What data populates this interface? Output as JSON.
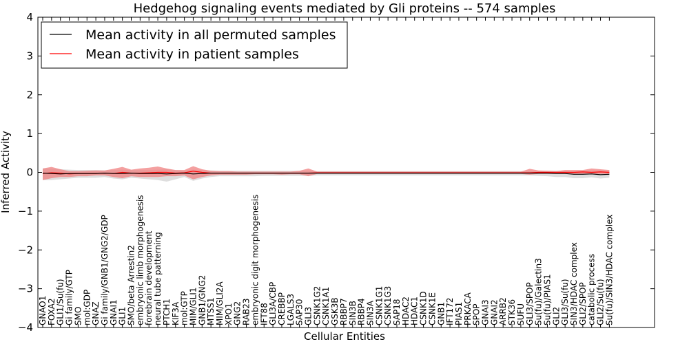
{
  "chart_data": {
    "type": "line",
    "title": "Hedgehog signaling events mediated by Gli proteins -- 574 samples",
    "xlabel": "Cellular Entities",
    "ylabel": "Inferred Activity",
    "ylim": [
      -4,
      4
    ],
    "yticks": [
      -4,
      -3,
      -2,
      -1,
      0,
      1,
      2,
      3,
      4
    ],
    "grid": false,
    "legend_position": "top-left",
    "categories": [
      "GNAO1",
      "FOXA2",
      "GLI1/Su(fu)",
      "Gi family/GTP",
      "SMO",
      "mol:GDP",
      "GNAZ",
      "Gi family/GNB1/GNG2/GDP",
      "GNAI1",
      "GLI1",
      "SMO/beta Arrestin2",
      "embryonic limb morphogenesis",
      "forebrain development",
      "neural tube patterning",
      "PTCH1",
      "KIF3A",
      "mol:GTP",
      "MIM/GLI1",
      "GNB1/GNG2",
      "MTSS1",
      "MIM/GLI2A",
      "XPO1",
      "GNG2",
      "RAB23",
      "embryonic digit morphogenesis",
      "IFT88",
      "GLI3A/CBP",
      "CREBBP",
      "LGALS3",
      "SAP30",
      "GLI3",
      "CSNK1G2",
      "CSNK1A1",
      "GSK3B",
      "RBBP7",
      "SIN3B",
      "RBBP4",
      "SIN3A",
      "CSNK1G1",
      "CSNK1G3",
      "SAP18",
      "HDAC2",
      "HDAC1",
      "CSNK1D",
      "CSNK1E",
      "GNB1",
      "IFT172",
      "PIAS1",
      "PRKACA",
      "SPOP",
      "GNAI3",
      "GNAI2",
      "ARRB2",
      "STK36",
      "SUFU",
      "GLI3/SPOP",
      "Su(fu)/Galectin3",
      "Su(fu)/PIAS1",
      "GLI2",
      "GLI3/Su(fu)",
      "SIN3/HDAC complex",
      "GLI2/SPOP",
      "catabolic process",
      "GLI2/Su(fu)",
      "Su(fu)/SIN3/HDAC complex"
    ],
    "series": [
      {
        "name": "Mean activity in all permuted samples",
        "color": "#000000",
        "band_color": "#d8d8d8",
        "values": [
          -0.02,
          -0.03,
          -0.04,
          -0.03,
          -0.03,
          -0.03,
          -0.03,
          -0.02,
          -0.03,
          -0.03,
          -0.02,
          -0.03,
          -0.03,
          -0.03,
          -0.04,
          -0.03,
          -0.02,
          -0.04,
          -0.03,
          -0.02,
          -0.02,
          -0.02,
          -0.02,
          -0.02,
          -0.02,
          -0.02,
          -0.02,
          -0.02,
          -0.02,
          -0.02,
          -0.02,
          -0.02,
          -0.02,
          -0.02,
          -0.02,
          -0.02,
          -0.02,
          -0.02,
          -0.02,
          -0.02,
          -0.02,
          -0.02,
          -0.02,
          -0.02,
          -0.02,
          -0.02,
          -0.02,
          -0.02,
          -0.02,
          -0.02,
          -0.02,
          -0.02,
          -0.02,
          -0.02,
          -0.02,
          -0.02,
          -0.02,
          -0.02,
          -0.03,
          -0.03,
          -0.05,
          -0.05,
          -0.04,
          -0.06,
          -0.05
        ],
        "band_low": [
          -0.2,
          -0.2,
          -0.18,
          -0.16,
          -0.14,
          -0.14,
          -0.14,
          -0.12,
          -0.16,
          -0.18,
          -0.14,
          -0.16,
          -0.18,
          -0.2,
          -0.24,
          -0.18,
          -0.12,
          -0.22,
          -0.16,
          -0.12,
          -0.1,
          -0.1,
          -0.1,
          -0.1,
          -0.1,
          -0.09,
          -0.09,
          -0.09,
          -0.09,
          -0.09,
          -0.09,
          -0.08,
          -0.08,
          -0.08,
          -0.08,
          -0.08,
          -0.08,
          -0.08,
          -0.08,
          -0.08,
          -0.08,
          -0.08,
          -0.08,
          -0.08,
          -0.08,
          -0.08,
          -0.08,
          -0.08,
          -0.08,
          -0.08,
          -0.08,
          -0.08,
          -0.08,
          -0.08,
          -0.08,
          -0.08,
          -0.09,
          -0.1,
          -0.12,
          -0.12,
          -0.15,
          -0.15,
          -0.13,
          -0.16,
          -0.14
        ],
        "band_high": [
          0.1,
          0.1,
          0.08,
          0.07,
          0.06,
          0.06,
          0.06,
          0.05,
          0.06,
          0.07,
          0.06,
          0.06,
          0.06,
          0.07,
          0.08,
          0.06,
          0.05,
          0.07,
          0.06,
          0.05,
          0.04,
          0.04,
          0.04,
          0.04,
          0.04,
          0.04,
          0.04,
          0.04,
          0.04,
          0.04,
          0.04,
          0.03,
          0.03,
          0.03,
          0.03,
          0.03,
          0.03,
          0.03,
          0.03,
          0.03,
          0.03,
          0.03,
          0.03,
          0.03,
          0.03,
          0.03,
          0.03,
          0.03,
          0.03,
          0.03,
          0.03,
          0.03,
          0.03,
          0.03,
          0.03,
          0.03,
          0.03,
          0.04,
          0.04,
          0.04,
          0.05,
          0.05,
          0.05,
          0.06,
          0.05
        ]
      },
      {
        "name": "Mean activity in patient samples",
        "color": "#ff0000",
        "band_color": "#f08080",
        "values": [
          -0.03,
          -0.01,
          -0.02,
          -0.04,
          -0.03,
          -0.03,
          -0.03,
          -0.02,
          -0.03,
          0.0,
          -0.02,
          -0.02,
          -0.01,
          0.0,
          0.0,
          -0.02,
          -0.01,
          0.03,
          0.0,
          -0.02,
          -0.02,
          -0.02,
          -0.02,
          -0.02,
          -0.02,
          -0.02,
          -0.02,
          -0.02,
          -0.02,
          -0.02,
          -0.02,
          -0.01,
          -0.01,
          -0.01,
          -0.01,
          -0.01,
          -0.01,
          -0.01,
          -0.01,
          -0.01,
          -0.01,
          -0.01,
          -0.01,
          -0.01,
          -0.01,
          -0.01,
          -0.01,
          -0.01,
          -0.01,
          -0.01,
          -0.01,
          -0.01,
          -0.01,
          -0.01,
          -0.01,
          -0.01,
          0.0,
          0.0,
          0.0,
          0.0,
          0.0,
          0.01,
          0.0,
          0.01,
          0.0
        ],
        "band_low": [
          -0.2,
          -0.15,
          -0.12,
          -0.12,
          -0.1,
          -0.1,
          -0.08,
          -0.08,
          -0.12,
          -0.15,
          -0.1,
          -0.12,
          -0.12,
          -0.12,
          -0.1,
          -0.1,
          -0.08,
          -0.18,
          -0.12,
          -0.08,
          -0.06,
          -0.06,
          -0.06,
          -0.06,
          -0.05,
          -0.05,
          -0.05,
          -0.06,
          -0.05,
          -0.05,
          -0.1,
          -0.04,
          -0.04,
          -0.04,
          -0.04,
          -0.04,
          -0.04,
          -0.04,
          -0.04,
          -0.04,
          -0.04,
          -0.04,
          -0.04,
          -0.04,
          -0.04,
          -0.04,
          -0.04,
          -0.04,
          -0.04,
          -0.04,
          -0.04,
          -0.04,
          -0.04,
          -0.04,
          -0.04,
          -0.06,
          -0.04,
          -0.04,
          -0.04,
          -0.04,
          -0.04,
          -0.04,
          -0.04,
          -0.04,
          -0.04
        ],
        "band_high": [
          0.1,
          0.14,
          0.08,
          0.03,
          0.03,
          0.04,
          0.05,
          0.05,
          0.09,
          0.14,
          0.07,
          0.1,
          0.12,
          0.15,
          0.1,
          0.06,
          0.06,
          0.16,
          0.08,
          0.04,
          0.03,
          0.03,
          0.02,
          0.02,
          0.02,
          0.02,
          0.02,
          0.02,
          0.02,
          0.04,
          0.1,
          0.02,
          0.02,
          0.02,
          0.02,
          0.02,
          0.02,
          0.02,
          0.02,
          0.02,
          0.02,
          0.02,
          0.02,
          0.02,
          0.02,
          0.02,
          0.02,
          0.02,
          0.02,
          0.02,
          0.02,
          0.02,
          0.02,
          0.02,
          0.02,
          0.09,
          0.05,
          0.04,
          0.03,
          0.06,
          0.06,
          0.06,
          0.1,
          0.08,
          0.06
        ]
      }
    ]
  }
}
